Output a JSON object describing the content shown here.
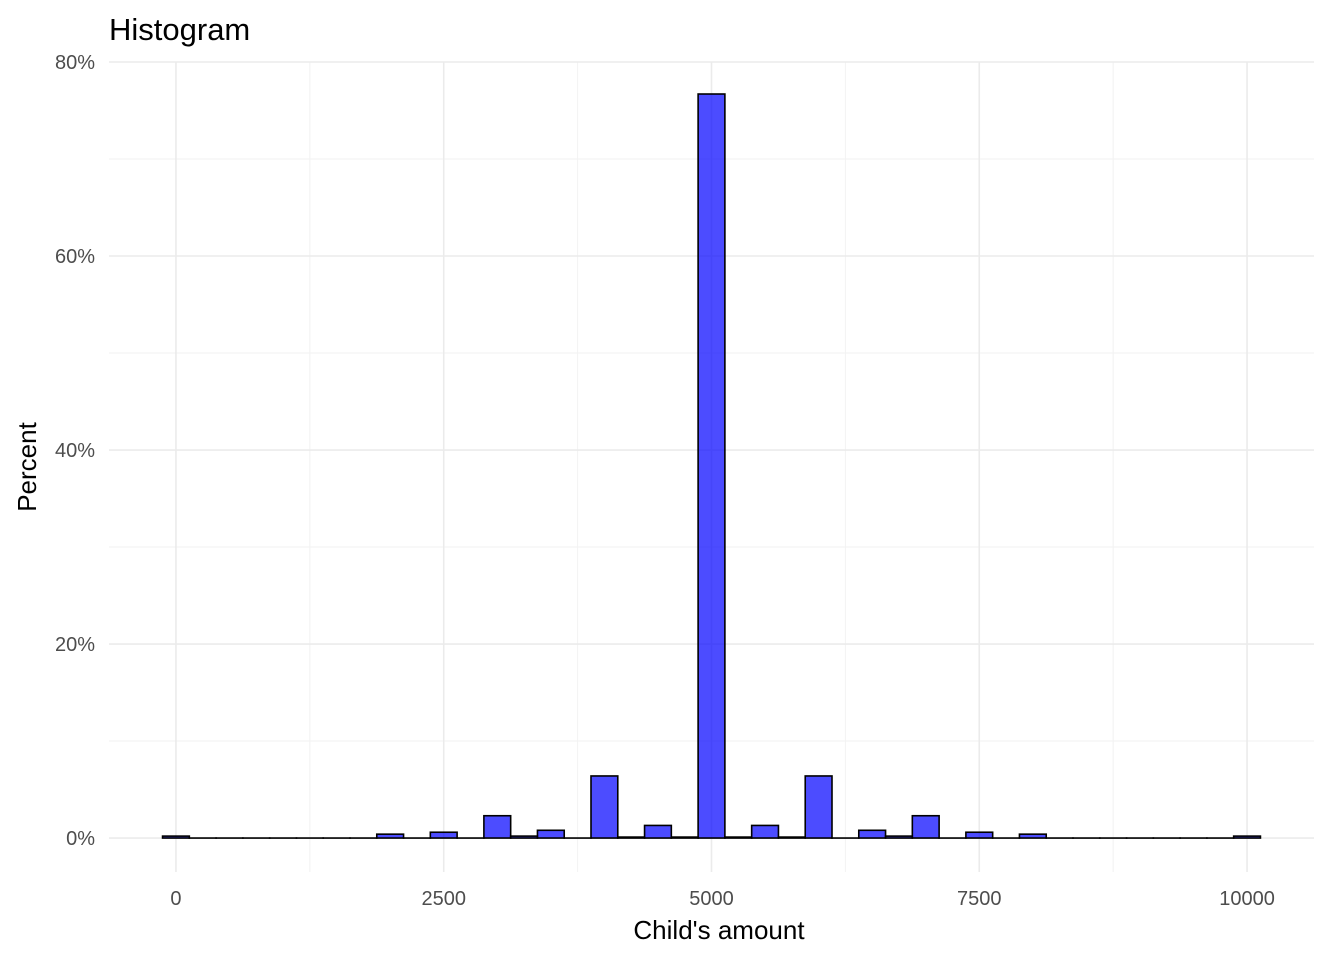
{
  "chart_data": {
    "type": "bar",
    "title": "Histogram",
    "xlabel": "Child's amount",
    "ylabel": "Percent",
    "xlim": [
      -625,
      10625
    ],
    "ylim": [
      -0.035,
      0.8
    ],
    "x_ticks": [
      0,
      2500,
      5000,
      7500,
      10000
    ],
    "x_tick_labels": [
      "0",
      "2500",
      "5000",
      "7500",
      "10000"
    ],
    "y_ticks": [
      0,
      0.2,
      0.4,
      0.6,
      0.8
    ],
    "y_tick_labels": [
      "0%",
      "20%",
      "40%",
      "60%",
      "80%"
    ],
    "bin_width": 250,
    "bar_color": "#0000ff",
    "bar_opacity": 0.7,
    "bar_outline": "#000000",
    "grid": true,
    "x": [
      0,
      250,
      500,
      750,
      1000,
      1250,
      1500,
      1750,
      2000,
      2250,
      2500,
      2750,
      3000,
      3250,
      3500,
      3750,
      4000,
      4250,
      4500,
      4750,
      5000,
      5250,
      5500,
      5750,
      6000,
      6250,
      6500,
      6750,
      7000,
      7250,
      7500,
      7750,
      8000,
      8250,
      8500,
      8750,
      9000,
      9250,
      9500,
      9750,
      10000
    ],
    "values": [
      0.002,
      0,
      0,
      0,
      0,
      0,
      0,
      0,
      0.004,
      0,
      0.006,
      0,
      0.023,
      0.002,
      0.008,
      0,
      0.064,
      0.001,
      0.013,
      0.001,
      0.767,
      0.001,
      0.013,
      0.001,
      0.064,
      0,
      0.008,
      0.002,
      0.023,
      0,
      0.006,
      0,
      0.004,
      0,
      0,
      0,
      0,
      0,
      0,
      0,
      0.002
    ]
  }
}
